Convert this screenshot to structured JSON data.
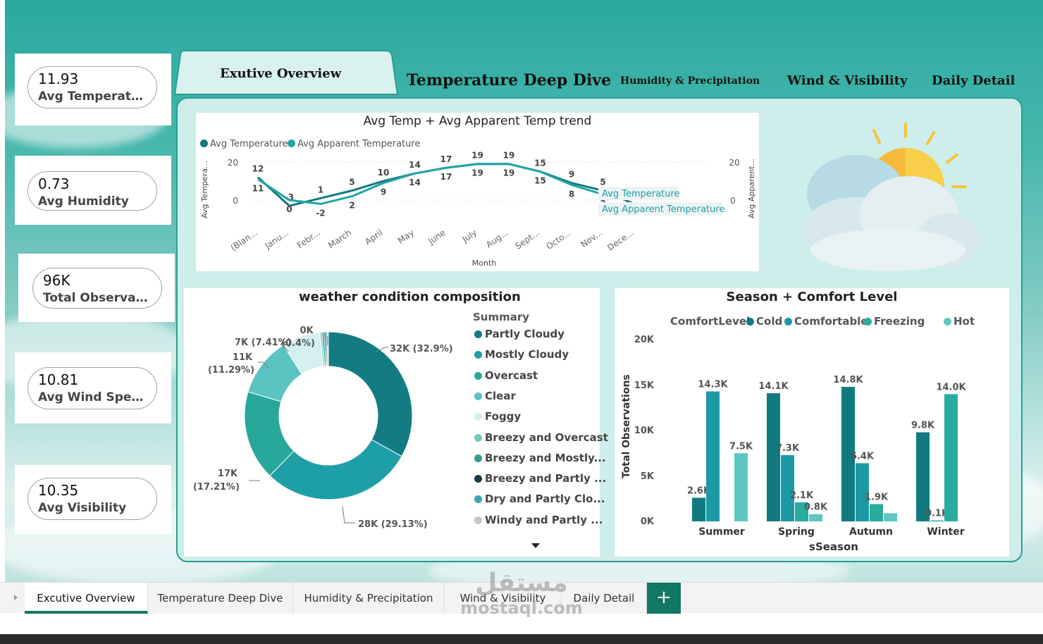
{
  "kpis": [
    {
      "value": "11.93",
      "label": "Avg Temperature"
    },
    {
      "value": "0.73",
      "label": "Avg Humidity"
    },
    {
      "value": "96K",
      "label": "Total Observati..."
    },
    {
      "value": "10.81",
      "label": "Avg Wind Speed"
    },
    {
      "value": "10.35",
      "label": "Avg Visibility"
    }
  ],
  "nav": {
    "tabs": [
      {
        "label": "Exutive Overview"
      },
      {
        "label": "Temperature Deep Dive"
      },
      {
        "label": "Humidity & Precipitation"
      },
      {
        "label": "Wind & Visibility"
      },
      {
        "label": "Daily Detail"
      }
    ]
  },
  "line_chart": {
    "title": "Avg Temp + Avg Apparent Temp trend",
    "legend": [
      "Avg Temperature",
      "Avg Apparent Temperature"
    ],
    "ylabel_left": "Avg Tempera...",
    "ylabel_right": "Avg Apparent...",
    "xlabel": "Month",
    "y_ticks": [
      "20",
      "0"
    ],
    "y_ticks_right": [
      "20",
      "0"
    ],
    "end_labels": [
      "Avg Temperature",
      "Avg Apparent Temperature"
    ]
  },
  "donut_chart": {
    "title": "weather condition composition",
    "legend_title": "Summary",
    "labels": [
      "32K (32.9%)",
      "28K (29.13%)",
      "17K",
      "(17.21%)",
      "11K",
      "(11.29%)",
      "7K (7.41%)",
      "0K",
      "(0.4%)"
    ]
  },
  "bar_chart": {
    "title": "Season + Comfort Level",
    "legend_title": "ComfortLevel",
    "ylabel": "Total Observations",
    "xlabel": "sSeason",
    "y_ticks": [
      "20K",
      "15K",
      "10K",
      "5K",
      "0K"
    ]
  },
  "chart_data": [
    {
      "type": "line",
      "title": "Avg Temp + Avg Apparent Temp trend",
      "xlabel": "Month",
      "categories": [
        "(Blan...",
        "Janu...",
        "Febr...",
        "March",
        "April",
        "May",
        "June",
        "July",
        "Aug...",
        "Sept...",
        "Octo...",
        "Nov...",
        "Dece..."
      ],
      "series": [
        {
          "name": "Avg Temperature",
          "color": "#117a80",
          "values": [
            12,
            -3,
            1,
            5,
            10,
            14,
            17,
            19,
            19,
            15,
            9,
            5,
            -2
          ]
        },
        {
          "name": "Avg Apparent Temperature",
          "color": "#21a3a6",
          "values": [
            11,
            0,
            -2,
            2,
            9,
            14,
            17,
            19,
            19,
            15,
            8,
            3,
            1
          ]
        }
      ],
      "ylim": [
        -5,
        22
      ]
    },
    {
      "type": "pie",
      "title": "weather condition composition",
      "categories": [
        "Partly Cloudy",
        "Mostly Cloudy",
        "Overcast",
        "Clear",
        "Foggy",
        "Breezy and Overcast",
        "Breezy and Mostly...",
        "Breezy and Partly ...",
        "Dry and Partly Clo...",
        "Windy and Partly ..."
      ],
      "values": [
        32.9,
        29.13,
        17.21,
        11.29,
        7.41,
        0.4,
        0.4,
        0.3,
        0.3,
        0.2
      ],
      "colors": [
        "#127b83",
        "#1e9fa8",
        "#28a89a",
        "#5bc3c2",
        "#d4f0f0",
        "#6ccbbf",
        "#2f9f92",
        "#1d3a44",
        "#38a6b5",
        "#c5c5c5"
      ]
    },
    {
      "type": "bar",
      "title": "Season + Comfort Level",
      "xlabel": "sSeason",
      "ylabel": "Total Observations",
      "categories": [
        "Summer",
        "Spring",
        "Autumn",
        "Winter"
      ],
      "series": [
        {
          "name": "Cold",
          "color": "#117a80",
          "values": [
            2.6,
            14.1,
            14.8,
            9.8
          ],
          "labels": [
            "2.6K",
            "14.1K",
            "14.8K",
            "9.8K"
          ]
        },
        {
          "name": "Comfortable",
          "color": "#1b9aa6",
          "values": [
            14.3,
            7.3,
            6.4,
            0.1
          ],
          "labels": [
            "14.3K",
            "7.3K",
            "6.4K",
            "0.1K"
          ]
        },
        {
          "name": "Freezing",
          "color": "#2aab9f",
          "values": [
            0,
            2.1,
            1.9,
            14.0
          ],
          "labels": [
            "",
            "2.1K",
            "1.9K",
            "14.0K"
          ]
        },
        {
          "name": "Hot",
          "color": "#5fc6c0",
          "values": [
            7.5,
            0.8,
            0.9,
            0
          ],
          "labels": [
            "7.5K",
            "0.8K",
            "",
            ""
          ]
        }
      ],
      "ylim": [
        0,
        20
      ]
    }
  ],
  "bottom_tabs": [
    {
      "label": "Excutive Overview",
      "active": true
    },
    {
      "label": "Temperature Deep Dive"
    },
    {
      "label": "Humidity & Precipitation"
    },
    {
      "label": "Wind & Visibility"
    },
    {
      "label": "Daily Detail"
    }
  ],
  "add_page": "+",
  "watermark": {
    "arabic": "مستقل",
    "latin": "mostaql.com"
  }
}
